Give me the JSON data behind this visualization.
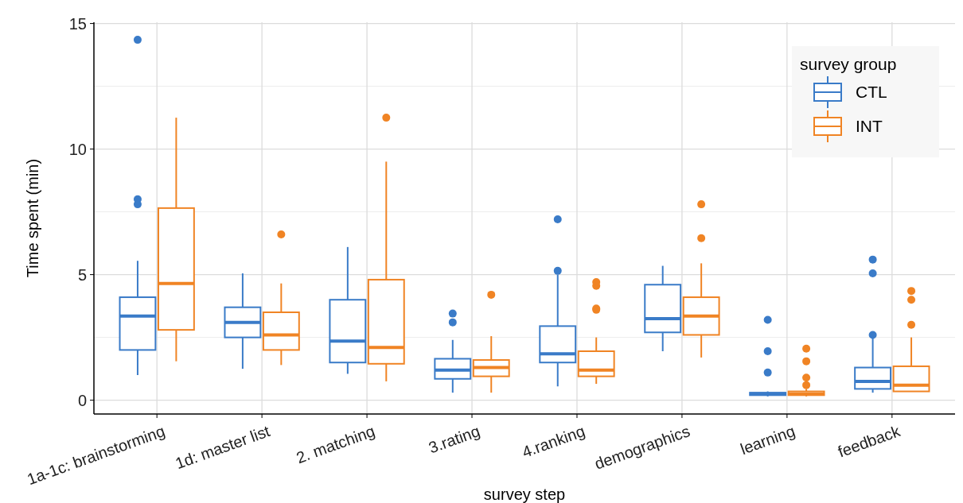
{
  "chart_data": {
    "type": "box",
    "xlabel": "survey step",
    "ylabel": "Time spent (min)",
    "legend_title": "survey group",
    "legend": "top right",
    "grid": true,
    "categories": [
      "1a-1c: brainstorming",
      "1d: master list",
      "2. matching",
      "3.rating",
      "4.ranking",
      "demographics",
      "learning",
      "feedback"
    ],
    "ylim": [
      -0.55,
      15.05
    ],
    "yticks": [
      0,
      5,
      10,
      15
    ],
    "series": [
      {
        "name": "CTL",
        "color": "#3a7bc8",
        "boxes": [
          {
            "low": 1.0,
            "q1": 2.0,
            "median": 3.35,
            "q3": 4.1,
            "high": 5.55,
            "outliers": [
              7.8,
              8.0,
              14.35
            ]
          },
          {
            "low": 1.25,
            "q1": 2.5,
            "median": 3.1,
            "q3": 3.7,
            "high": 5.05
          },
          {
            "low": 1.05,
            "q1": 1.5,
            "median": 2.35,
            "q3": 4.0,
            "high": 6.1
          },
          {
            "low": 0.3,
            "q1": 0.85,
            "median": 1.2,
            "q3": 1.65,
            "high": 2.4,
            "outliers": [
              3.1,
              3.45
            ]
          },
          {
            "low": 0.55,
            "q1": 1.5,
            "median": 1.85,
            "q3": 2.95,
            "high": 5.0,
            "outliers": [
              5.15,
              7.2
            ]
          },
          {
            "low": 1.95,
            "q1": 2.7,
            "median": 3.25,
            "q3": 4.6,
            "high": 5.35
          },
          {
            "low": 0.15,
            "q1": 0.2,
            "median": 0.25,
            "q3": 0.3,
            "high": 0.35,
            "outliers": [
              1.1,
              1.95,
              3.2
            ]
          },
          {
            "low": 0.3,
            "q1": 0.45,
            "median": 0.75,
            "q3": 1.3,
            "high": 2.5,
            "outliers": [
              2.6,
              5.05,
              5.6
            ]
          }
        ]
      },
      {
        "name": "INT",
        "color": "#f08424",
        "boxes": [
          {
            "low": 1.55,
            "q1": 2.8,
            "median": 4.65,
            "q3": 7.65,
            "high": 11.25
          },
          {
            "low": 1.4,
            "q1": 2.0,
            "median": 2.6,
            "q3": 3.5,
            "high": 4.65,
            "outliers": [
              6.6
            ]
          },
          {
            "low": 0.75,
            "q1": 1.45,
            "median": 2.1,
            "q3": 4.8,
            "high": 9.5,
            "outliers": [
              11.25
            ]
          },
          {
            "low": 0.3,
            "q1": 0.95,
            "median": 1.3,
            "q3": 1.6,
            "high": 2.55,
            "outliers": [
              4.2
            ]
          },
          {
            "low": 0.65,
            "q1": 0.95,
            "median": 1.2,
            "q3": 1.95,
            "high": 2.5,
            "outliers": [
              3.6,
              3.65,
              4.55,
              4.7
            ]
          },
          {
            "low": 1.7,
            "q1": 2.6,
            "median": 3.35,
            "q3": 4.1,
            "high": 5.45,
            "outliers": [
              6.45,
              7.8
            ]
          },
          {
            "low": 0.15,
            "q1": 0.2,
            "median": 0.25,
            "q3": 0.35,
            "high": 0.45,
            "outliers": [
              0.6,
              0.9,
              1.55,
              2.05
            ]
          },
          {
            "low": 0.35,
            "q1": 0.35,
            "median": 0.6,
            "q3": 1.35,
            "high": 2.5,
            "outliers": [
              3.0,
              4.0,
              4.35
            ]
          }
        ]
      }
    ]
  }
}
